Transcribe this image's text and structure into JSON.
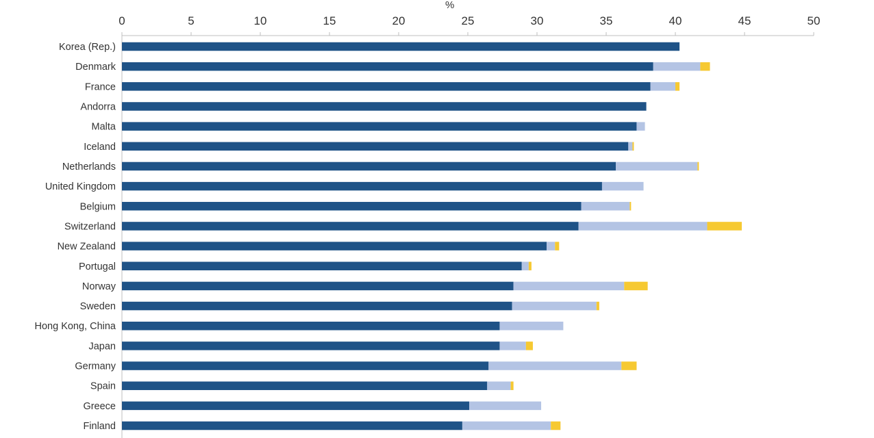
{
  "chart_data": {
    "type": "bar",
    "orientation": "horizontal",
    "stacked": true,
    "unit_label": "%",
    "xlim": [
      0,
      50
    ],
    "x_ticks": [
      0,
      5,
      10,
      15,
      20,
      25,
      30,
      35,
      40,
      45,
      50
    ],
    "x_axis_position": "top",
    "grid": false,
    "legend": null,
    "categories": [
      "Korea (Rep.)",
      "Denmark",
      "France",
      "Andorra",
      "Malta",
      "Iceland",
      "Netherlands",
      "United Kingdom",
      "Belgium",
      "Switzerland",
      "New Zealand",
      "Portugal",
      "Norway",
      "Sweden",
      "Hong Kong, China",
      "Japan",
      "Germany",
      "Spain",
      "Greece",
      "Finland"
    ],
    "series": [
      {
        "color": "#1f5387",
        "values": [
          40.3,
          38.4,
          38.2,
          37.9,
          37.2,
          36.6,
          35.7,
          34.7,
          33.2,
          33.0,
          30.7,
          28.9,
          28.3,
          28.2,
          27.3,
          27.3,
          26.5,
          26.4,
          25.1,
          24.6
        ]
      },
      {
        "color": "#b4c4e4",
        "values": [
          0.0,
          3.4,
          1.8,
          0.0,
          0.6,
          0.3,
          5.9,
          3.0,
          3.5,
          9.3,
          0.6,
          0.5,
          8.0,
          6.1,
          4.6,
          1.9,
          9.6,
          1.7,
          5.2,
          6.4
        ]
      },
      {
        "color": "#f6c932",
        "values": [
          0.0,
          0.7,
          0.3,
          0.0,
          0.0,
          0.1,
          0.1,
          0.0,
          0.1,
          2.5,
          0.3,
          0.2,
          1.7,
          0.2,
          0.0,
          0.5,
          1.1,
          0.2,
          0.0,
          0.7
        ]
      }
    ]
  }
}
